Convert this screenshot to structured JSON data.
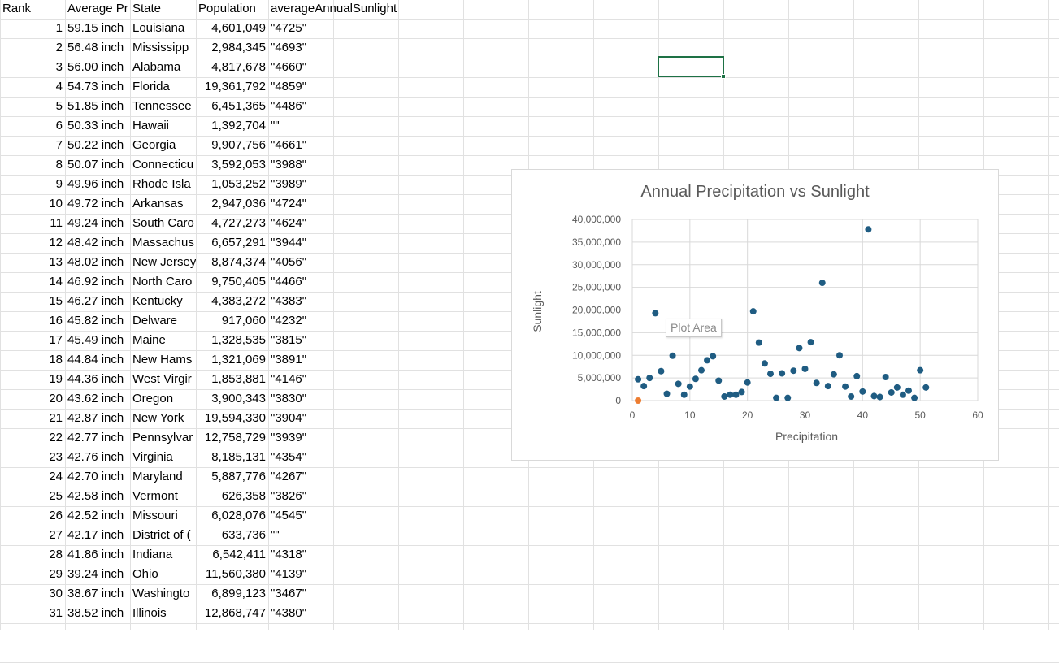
{
  "sheet": {
    "headers": [
      "Rank",
      "Average Pr",
      "State",
      "Population",
      "averageAnnualSunlight"
    ],
    "rows": [
      [
        "1",
        "59.15 inch",
        "Louisiana",
        "4,601,049",
        "\"4725\""
      ],
      [
        "2",
        "56.48 inch",
        "Mississipp",
        "2,984,345",
        "\"4693\""
      ],
      [
        "3",
        "56.00 inch",
        "Alabama",
        "4,817,678",
        "\"4660\""
      ],
      [
        "4",
        "54.73 inch",
        "Florida",
        "19,361,792",
        "\"4859\""
      ],
      [
        "5",
        "51.85 inch",
        "Tennessee",
        "6,451,365",
        "\"4486\""
      ],
      [
        "6",
        "50.33 inch",
        "Hawaii",
        "1,392,704",
        "\"\""
      ],
      [
        "7",
        "50.22 inch",
        "Georgia",
        "9,907,756",
        "\"4661\""
      ],
      [
        "8",
        "50.07 inch",
        "Connecticu",
        "3,592,053",
        "\"3988\""
      ],
      [
        "9",
        "49.96 inch",
        "Rhode Isla",
        "1,053,252",
        "\"3989\""
      ],
      [
        "10",
        "49.72 inch",
        "Arkansas",
        "2,947,036",
        "\"4724\""
      ],
      [
        "11",
        "49.24 inch",
        "South Caro",
        "4,727,273",
        "\"4624\""
      ],
      [
        "12",
        "48.42 inch",
        "Massachus",
        "6,657,291",
        "\"3944\""
      ],
      [
        "13",
        "48.02 inch",
        "New Jersey",
        "8,874,374",
        "\"4056\""
      ],
      [
        "14",
        "46.92 inch",
        "North Caro",
        "9,750,405",
        "\"4466\""
      ],
      [
        "15",
        "46.27 inch",
        "Kentucky",
        "4,383,272",
        "\"4383\""
      ],
      [
        "16",
        "45.82 inch",
        "Delware",
        "917,060",
        "\"4232\""
      ],
      [
        "17",
        "45.49 inch",
        "Maine",
        "1,328,535",
        "\"3815\""
      ],
      [
        "18",
        "44.84 inch",
        "New Hams",
        "1,321,069",
        "\"3891\""
      ],
      [
        "19",
        "44.36 inch",
        "West Virgir",
        "1,853,881",
        "\"4146\""
      ],
      [
        "20",
        "43.62 inch",
        "Oregon",
        "3,900,343",
        "\"3830\""
      ],
      [
        "21",
        "42.87 inch",
        "New York",
        "19,594,330",
        "\"3904\""
      ],
      [
        "22",
        "42.77 inch",
        "Pennsylvar",
        "12,758,729",
        "\"3939\""
      ],
      [
        "23",
        "42.76 inch",
        "Virginia",
        "8,185,131",
        "\"4354\""
      ],
      [
        "24",
        "42.70 inch",
        "Maryland",
        "5,887,776",
        "\"4267\""
      ],
      [
        "25",
        "42.58 inch",
        "Vermont",
        "626,358",
        "\"3826\""
      ],
      [
        "26",
        "42.52 inch",
        "Missouri",
        "6,028,076",
        "\"4545\""
      ],
      [
        "27",
        "42.17 inch",
        "District of (",
        "633,736",
        "\"\""
      ],
      [
        "28",
        "41.86 inch",
        "Indiana",
        "6,542,411",
        "\"4318\""
      ],
      [
        "29",
        "39.24 inch",
        "Ohio",
        "11,560,380",
        "\"4139\""
      ],
      [
        "30",
        "38.67 inch",
        "Washingto",
        "6,899,123",
        "\"3467\""
      ],
      [
        "31",
        "38.52 inch",
        "Illinois",
        "12,868,747",
        "\"4380\""
      ]
    ]
  },
  "chart_data": {
    "type": "scatter",
    "title": "Annual Precipitation vs Sunlight",
    "xlabel": "Precipitation",
    "ylabel": "Sunlight",
    "xlim": [
      0,
      60
    ],
    "ylim": [
      0,
      40000000
    ],
    "x_ticks": [
      "0",
      "10",
      "20",
      "30",
      "40",
      "50",
      "60"
    ],
    "y_ticks": [
      "0",
      "5,000,000",
      "10,000,000",
      "15,000,000",
      "20,000,000",
      "25,000,000",
      "30,000,000",
      "35,000,000",
      "40,000,000"
    ],
    "grid": true,
    "series": [
      {
        "color": "#1f5c82",
        "points": [
          [
            1,
            4700000
          ],
          [
            2,
            3200000
          ],
          [
            3,
            5000000
          ],
          [
            4,
            19300000
          ],
          [
            5,
            6500000
          ],
          [
            6,
            1500000
          ],
          [
            7,
            9900000
          ],
          [
            8,
            3700000
          ],
          [
            9,
            1300000
          ],
          [
            10,
            3100000
          ],
          [
            11,
            4800000
          ],
          [
            12,
            6700000
          ],
          [
            13,
            8900000
          ],
          [
            14,
            9800000
          ],
          [
            15,
            4400000
          ],
          [
            16,
            900000
          ],
          [
            17,
            1300000
          ],
          [
            18,
            1300000
          ],
          [
            19,
            1900000
          ],
          [
            20,
            4000000
          ],
          [
            21,
            19700000
          ],
          [
            22,
            12800000
          ],
          [
            23,
            8200000
          ],
          [
            24,
            5900000
          ],
          [
            25,
            600000
          ],
          [
            26,
            6000000
          ],
          [
            27,
            600000
          ],
          [
            28,
            6600000
          ],
          [
            29,
            11600000
          ],
          [
            30,
            7000000
          ],
          [
            31,
            12900000
          ],
          [
            32,
            3900000
          ],
          [
            33,
            26000000
          ],
          [
            34,
            3200000
          ],
          [
            35,
            5800000
          ],
          [
            36,
            10000000
          ],
          [
            37,
            3100000
          ],
          [
            38,
            900000
          ],
          [
            39,
            5400000
          ],
          [
            40,
            2000000
          ],
          [
            41,
            37800000
          ],
          [
            42,
            1000000
          ],
          [
            43,
            800000
          ],
          [
            44,
            5200000
          ],
          [
            45,
            1800000
          ],
          [
            46,
            2900000
          ],
          [
            47,
            1300000
          ],
          [
            48,
            2200000
          ],
          [
            49,
            600000
          ],
          [
            50,
            6700000
          ],
          [
            51,
            2900000
          ]
        ]
      },
      {
        "color": "#ed7d31",
        "points": [
          [
            1,
            0
          ]
        ]
      }
    ]
  },
  "tooltip": "Plot Area"
}
